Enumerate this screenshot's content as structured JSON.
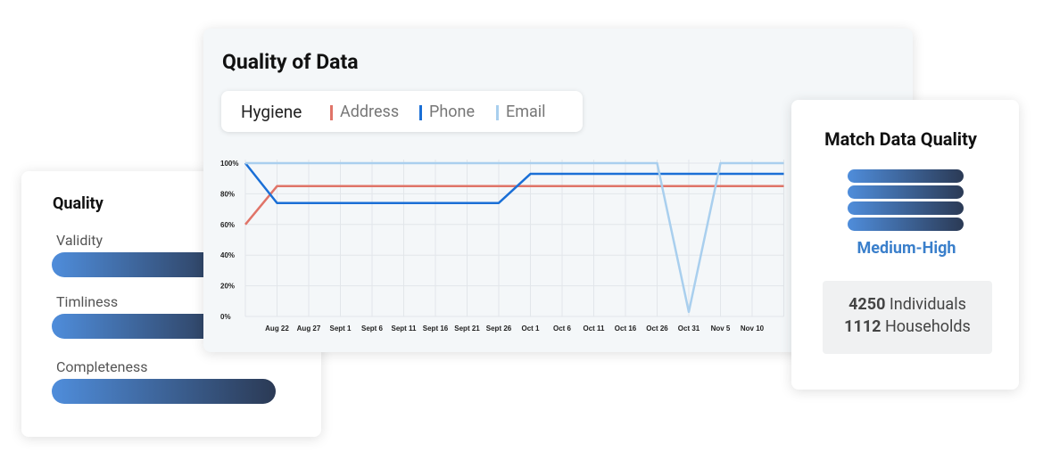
{
  "quality_card": {
    "title": "Quality",
    "items": [
      "Validity",
      "Timliness",
      "Completeness"
    ]
  },
  "chart_data": {
    "type": "line",
    "title": "Quality of Data",
    "legend_title": "Hygiene",
    "categories": [
      null,
      "Aug 22",
      "Aug 27",
      "Sept 1",
      "Sept 6",
      "Sept 11",
      "Sept 16",
      "Sept 21",
      "Sept 26",
      "Oct 1",
      "Oct 6",
      "Oct 11",
      "Oct 16",
      "Oct 26",
      "Oct 31",
      "Nov 5",
      "Nov 10",
      null
    ],
    "series": [
      {
        "name": "Address",
        "color": "#e07468",
        "values": [
          60,
          85,
          85,
          85,
          85,
          85,
          85,
          85,
          85,
          85,
          85,
          85,
          85,
          85,
          85,
          85,
          85,
          85
        ]
      },
      {
        "name": "Phone",
        "color": "#1a6fd6",
        "values": [
          100,
          74,
          74,
          74,
          74,
          74,
          74,
          74,
          74,
          93,
          93,
          93,
          93,
          93,
          93,
          93,
          93,
          93
        ]
      },
      {
        "name": "Email",
        "color": "#a9cfee",
        "values": [
          100,
          100,
          100,
          100,
          100,
          100,
          100,
          100,
          100,
          100,
          100,
          100,
          100,
          100,
          3,
          100,
          100,
          100
        ]
      }
    ],
    "ylim": [
      0,
      100
    ],
    "yticks": [
      {
        "value": 0,
        "label": "0%"
      },
      {
        "value": 20,
        "label": "20%"
      },
      {
        "value": 40,
        "label": "40%"
      },
      {
        "value": 60,
        "label": "60%"
      },
      {
        "value": 80,
        "label": "80%"
      },
      {
        "value": 100,
        "label": "100%"
      }
    ],
    "grid": true
  },
  "match_card": {
    "title": "Match Data Quality",
    "level": "Medium-High",
    "stats": [
      {
        "count": "4250",
        "label": "Individuals"
      },
      {
        "count": "1112",
        "label": "Households"
      }
    ]
  }
}
